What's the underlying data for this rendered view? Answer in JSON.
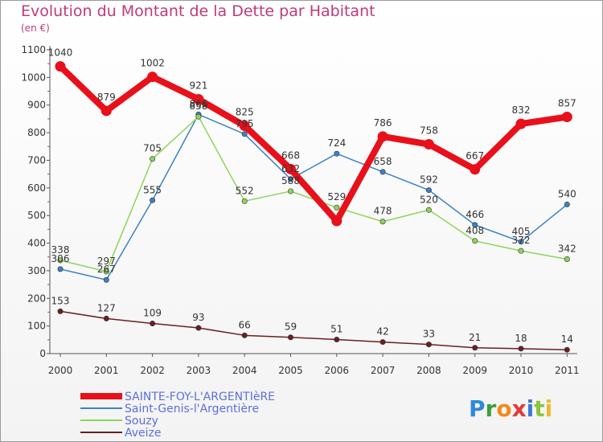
{
  "title": "Evolution du Montant de la Dette par Habitant",
  "subtitle": "(en €)",
  "logo": "Proxiti",
  "colors": {
    "title": "#c0397a",
    "logo_P": "#2e8ad8",
    "logo_r": "#3aa13a",
    "logo_o": "#f08c1a",
    "logo_x": "#e23a3a",
    "logo_i": "#3a7ad8",
    "logo_t": "#8bc43a",
    "logo_i2": "#f0b82a"
  },
  "chart_data": {
    "type": "line",
    "title": "Evolution du Montant de la Dette par Habitant",
    "subtitle": "(en €)",
    "categories": [
      "2000",
      "2001",
      "2002",
      "2003",
      "2004",
      "2005",
      "2006",
      "2007",
      "2008",
      "2009",
      "2010",
      "2011"
    ],
    "ylim": [
      0,
      1100
    ],
    "yticks": [
      0,
      100,
      200,
      300,
      400,
      500,
      600,
      700,
      800,
      900,
      1000,
      1100
    ],
    "grid": false,
    "legend_position": "bottom-left",
    "series": [
      {
        "name": "SAINTE-FOY-L'ARGENTIèRE",
        "color": "#e8101a",
        "legend_color": "#5b6fe0",
        "width": 8,
        "values": [
          1040,
          879,
          1002,
          921,
          825,
          668,
          480,
          786,
          758,
          667,
          832,
          857
        ],
        "labels": [
          "1040",
          "879",
          "1002",
          "921",
          "825",
          "668",
          "",
          "786",
          "758",
          "667",
          "832",
          "857"
        ]
      },
      {
        "name": "Saint-Genis-l'Argentière",
        "color": "#3c82c4",
        "legend_color": "#5b6fe0",
        "width": 1.5,
        "values": [
          306,
          267,
          555,
          866,
          795,
          632,
          724,
          658,
          592,
          466,
          405,
          540
        ],
        "labels": [
          "306",
          "267",
          "555",
          "866",
          "795",
          "632",
          "724",
          "658",
          "592",
          "466",
          "405",
          "540"
        ]
      },
      {
        "name": "Souzy",
        "color": "#8fd45a",
        "legend_color": "#5b6fe0",
        "width": 1.5,
        "values": [
          338,
          297,
          705,
          858,
          552,
          588,
          529,
          478,
          520,
          408,
          372,
          342
        ],
        "labels": [
          "338",
          "297",
          "705",
          "858",
          "552",
          "588",
          "529",
          "478",
          "520",
          "408",
          "372",
          "342"
        ]
      },
      {
        "name": "Aveize",
        "color": "#6a1f1f",
        "legend_color": "#5b6fe0",
        "width": 1.5,
        "values": [
          153,
          127,
          109,
          93,
          66,
          59,
          51,
          42,
          33,
          21,
          18,
          14
        ],
        "labels": [
          "153",
          "127",
          "109",
          "93",
          "66",
          "59",
          "51",
          "42",
          "33",
          "21",
          "18",
          "14"
        ]
      }
    ]
  }
}
